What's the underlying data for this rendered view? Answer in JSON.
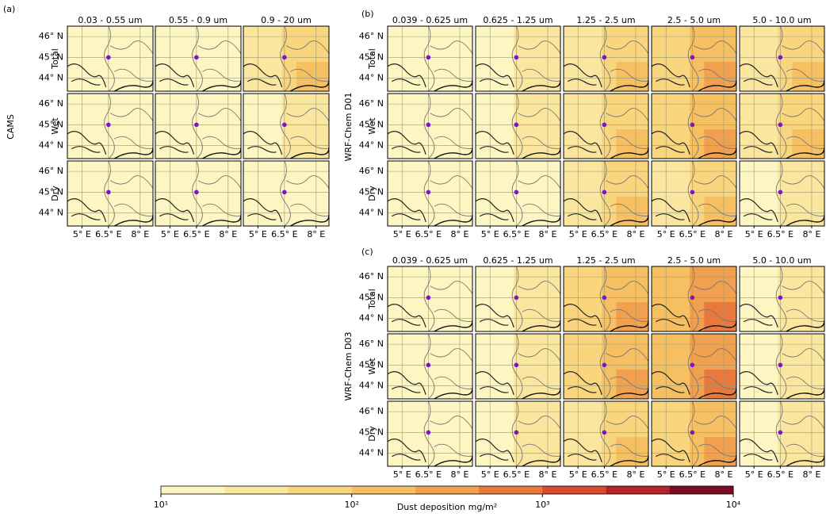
{
  "panels": [
    {
      "label": "(a)",
      "model": "CAMS",
      "columns": [
        "0.03 - 0.55 um",
        "0.55 - 0.9 um",
        "0.9 - 20 um"
      ],
      "rows": [
        "Total",
        "Wet",
        "Dry"
      ],
      "yticks": [
        "46° N",
        "45° N",
        "44° N"
      ],
      "xticks": [
        "5° E",
        "6.5° E",
        "8° E"
      ]
    },
    {
      "label": "(b)",
      "model": "WRF-Chem D01",
      "columns": [
        "0.039 - 0.625 um",
        "0.625 - 1.25 um",
        "1.25 - 2.5 um",
        "2.5 - 5.0 um",
        "5.0 - 10.0 um"
      ],
      "rows": [
        "Total",
        "Wet",
        "Dry"
      ],
      "yticks": [
        "46° N",
        "45° N",
        "44° N"
      ],
      "xticks": [
        "5° E",
        "6.5° E",
        "8° E"
      ]
    },
    {
      "label": "(c)",
      "model": "WRF-Chem D03",
      "columns": [
        "0.039 - 0.625 um",
        "0.625 - 1.25 um",
        "1.25 - 2.5 um",
        "2.5 - 5.0 um",
        "5.0 - 10.0 um"
      ],
      "rows": [
        "Total",
        "Wet",
        "Dry"
      ],
      "yticks": [
        "46° N",
        "45° N",
        "44° N"
      ],
      "xticks": [
        "5° E",
        "6.5° E",
        "8° E"
      ]
    }
  ],
  "colorbar": {
    "title": "Dust deposition mg/m²",
    "lim": [
      10,
      10000
    ],
    "log": true,
    "ticks": [
      {
        "value": 10,
        "label": "10¹"
      },
      {
        "value": 100,
        "label": "10²"
      },
      {
        "value": 1000,
        "label": "10³"
      },
      {
        "value": 10000,
        "label": "10⁴"
      }
    ],
    "colors": [
      "#fdf6c3",
      "#fbe6a0",
      "#f9d57e",
      "#f5bf62",
      "#f0a04e",
      "#e8793d",
      "#d64d2f",
      "#b22427",
      "#7a0c24"
    ]
  }
}
